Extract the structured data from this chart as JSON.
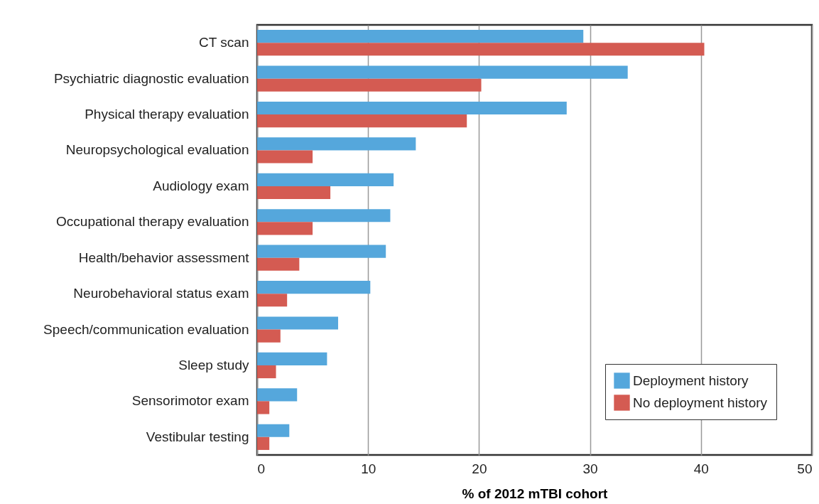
{
  "chart_data": {
    "type": "bar",
    "orientation": "horizontal",
    "xlabel": "% of 2012 mTBI cohort",
    "categories": [
      "CT scan",
      "Psychiatric diagnostic evaluation",
      "Physical therapy evaluation",
      "Neuropsychological evaluation",
      "Audiology exam",
      "Occupational therapy evaluation",
      "Health/behavior assessment",
      "Neurobehavioral status exam",
      "Speech/communication evaluation",
      "Sleep study",
      "Sensorimotor exam",
      "Vestibular testing"
    ],
    "series": [
      {
        "name": "Deployment history",
        "color": "#55a7dc",
        "values": [
          29.4,
          33.4,
          27.9,
          14.3,
          12.3,
          12.0,
          11.6,
          10.2,
          7.3,
          6.3,
          3.6,
          2.9
        ]
      },
      {
        "name": "No deployment history",
        "color": "#d45b52",
        "values": [
          40.3,
          20.2,
          18.9,
          5.0,
          6.6,
          5.0,
          3.8,
          2.7,
          2.1,
          1.7,
          1.1,
          1.1
        ]
      }
    ],
    "xlim": [
      0,
      50
    ],
    "xticks": [
      0,
      10,
      20,
      30,
      40,
      50
    ],
    "grid": "x",
    "legend": "bottom right"
  }
}
